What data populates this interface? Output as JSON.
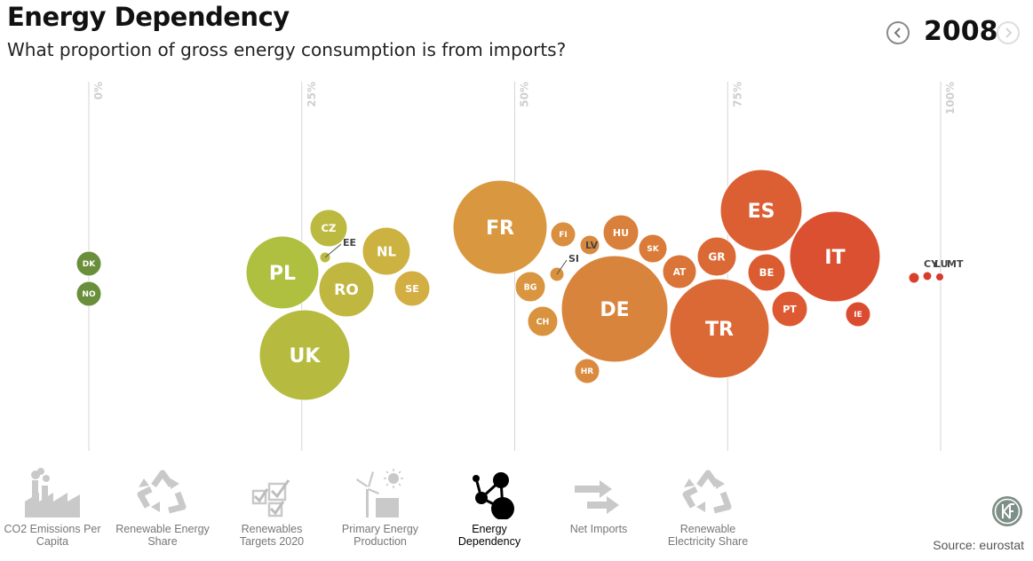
{
  "header": {
    "title": "Energy Dependency",
    "subtitle": "What proportion of gross energy consumption is from imports?",
    "year": "2008",
    "prev_icon": "chevron-left-icon",
    "next_icon": "chevron-right-icon"
  },
  "chart_data": {
    "type": "scatter",
    "title": "Energy Dependency",
    "subtitle": "What proportion of gross energy consumption is from imports?",
    "xlabel": "",
    "ylabel": "",
    "xlim": [
      0,
      100
    ],
    "x_ticks": [
      "0%",
      "25%",
      "50%",
      "75%",
      "100%"
    ],
    "x_tick_values": [
      0,
      25,
      50,
      75,
      100
    ],
    "grid": true,
    "bubble_color_scale": [
      "#6a8f3b",
      "#a8c23f",
      "#d8ac42",
      "#d9883e",
      "#dc5c32",
      "#d93a2b"
    ],
    "points": [
      {
        "label": "DK",
        "value": 0,
        "size": 1
      },
      {
        "label": "NO",
        "value": 0,
        "size": 1
      },
      {
        "label": "PL",
        "value": 23,
        "size": 8
      },
      {
        "label": "CZ",
        "value": 28,
        "size": 2.3
      },
      {
        "label": "EE",
        "value": 28,
        "size": 0.3
      },
      {
        "label": "RO",
        "value": 30,
        "size": 6
      },
      {
        "label": "NL",
        "value": 35,
        "size": 3.8
      },
      {
        "label": "SE",
        "value": 38,
        "size": 2
      },
      {
        "label": "UK",
        "value": 26,
        "size": 13
      },
      {
        "label": "FR",
        "value": 51,
        "size": 13
      },
      {
        "label": "BG",
        "value": 53,
        "size": 1.3
      },
      {
        "label": "FI",
        "value": 56,
        "size": 0.8
      },
      {
        "label": "CH",
        "value": 54,
        "size": 1.5
      },
      {
        "label": "SI",
        "value": 55,
        "size": 0.4
      },
      {
        "label": "LV",
        "value": 59,
        "size": 0.6
      },
      {
        "label": "HU",
        "value": 63,
        "size": 1.9
      },
      {
        "label": "HR",
        "value": 59,
        "size": 0.8
      },
      {
        "label": "DE",
        "value": 62,
        "size": 18
      },
      {
        "label": "SK",
        "value": 66,
        "size": 1.1
      },
      {
        "label": "AT",
        "value": 69,
        "size": 1.6
      },
      {
        "label": "TR",
        "value": 74,
        "size": 15
      },
      {
        "label": "GR",
        "value": 74,
        "size": 2.3
      },
      {
        "label": "ES",
        "value": 79,
        "size": 10
      },
      {
        "label": "BE",
        "value": 80,
        "size": 2.5
      },
      {
        "label": "PT",
        "value": 82,
        "size": 2
      },
      {
        "label": "IT",
        "value": 87,
        "size": 13
      },
      {
        "label": "IE",
        "value": 90,
        "size": 0.9
      },
      {
        "label": "CY",
        "value": 97,
        "size": 0.2
      },
      {
        "label": "LU",
        "value": 99,
        "size": 0.15
      },
      {
        "label": "MT",
        "value": 100,
        "size": 0.1
      }
    ]
  },
  "nav": {
    "items": [
      {
        "label_1": "CO2 Emissions Per",
        "label_2": "Capita",
        "icon": "factory-icon",
        "active": false
      },
      {
        "label_1": "Renewable Energy",
        "label_2": "Share",
        "icon": "recycle-icon",
        "active": false
      },
      {
        "label_1": "Renewables",
        "label_2": "Targets 2020",
        "icon": "checkbox-icon",
        "active": false
      },
      {
        "label_1": "Primary Energy",
        "label_2": "Production",
        "icon": "power-plant-icon",
        "active": false
      },
      {
        "label_1": "Energy",
        "label_2": "Dependency",
        "icon": "network-icon",
        "active": true
      },
      {
        "label_1": "Net Imports",
        "label_2": "",
        "icon": "arrows-right-icon",
        "active": false
      },
      {
        "label_1": "Renewable",
        "label_2": "Electricity Share",
        "icon": "recycle-icon",
        "active": false
      }
    ]
  },
  "footer": {
    "logo_icon": "kf-logo-icon",
    "source": "Source: eurostat"
  }
}
